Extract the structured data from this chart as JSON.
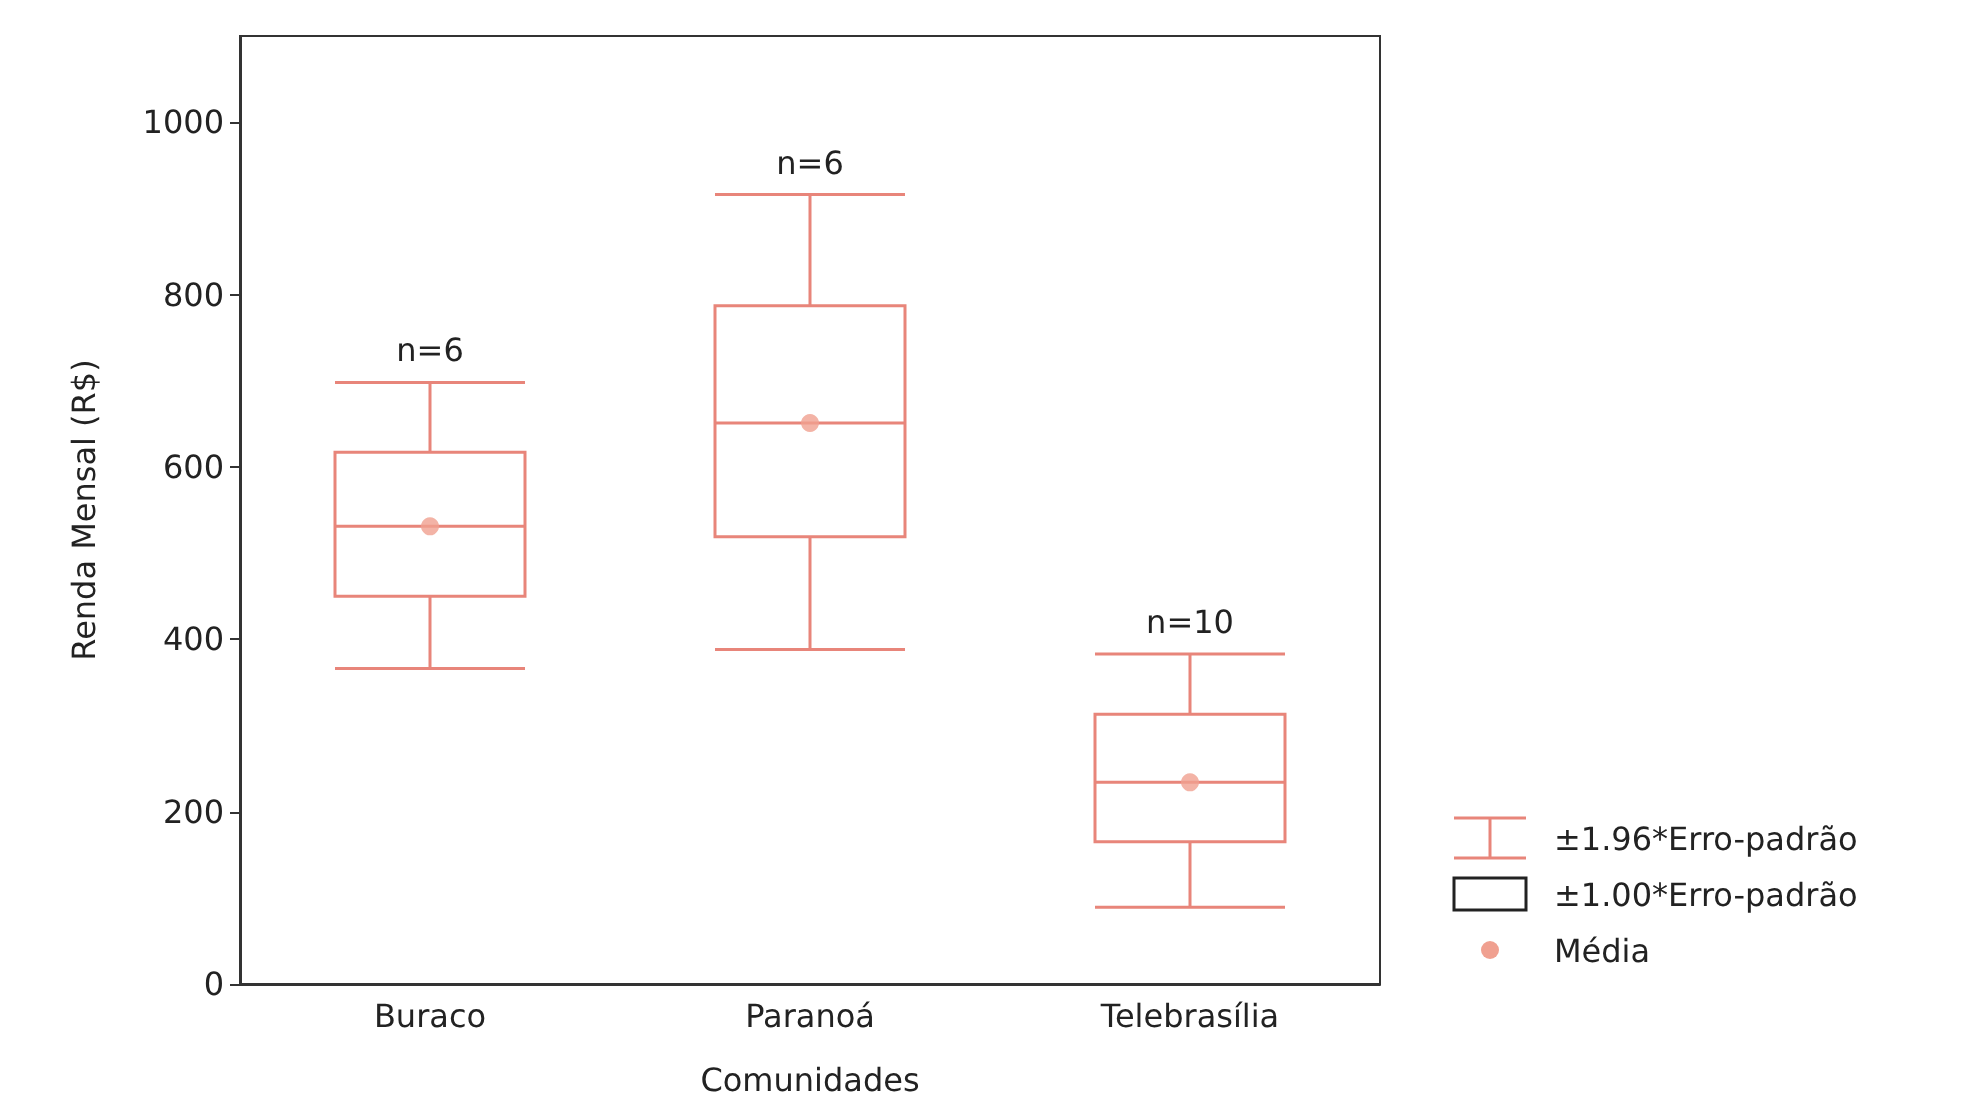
{
  "chart_data": {
    "type": "box",
    "xlabel": "Comunidades",
    "ylabel": "Renda Mensal (R$)",
    "categories": [
      "Buraco",
      "Paranoá",
      "Telebrasília"
    ],
    "ylim": [
      0,
      1100
    ],
    "yticks": [
      0,
      200,
      400,
      600,
      800,
      1000
    ],
    "grid": false,
    "legend": "bottom right",
    "series": [
      {
        "name": "±1.96*Erro-padrão",
        "color": "#e8857a",
        "boxes": [
          {
            "low": 366,
            "q1": 450,
            "median": 531,
            "q3": 617,
            "high": 698
          },
          {
            "low": 388,
            "q1": 519,
            "median": 651,
            "q3": 787,
            "high": 916
          },
          {
            "low": 89,
            "q1": 165,
            "median": 234,
            "q3": 313,
            "high": 383
          }
        ]
      },
      {
        "type": "scatter",
        "name": "Média",
        "color": "#f0a090",
        "x": [
          "Buraco",
          "Paranoá",
          "Telebrasília"
        ],
        "values": [
          531,
          651,
          234
        ]
      }
    ],
    "annotations": [
      {
        "text": "n=6",
        "x": "Buraco",
        "y": 698
      },
      {
        "text": "n=6",
        "x": "Paranoá",
        "y": 916
      },
      {
        "text": "n=10",
        "x": "Telebrasília",
        "y": 383
      },
      "±1.00*Erro-padrão"
    ]
  }
}
